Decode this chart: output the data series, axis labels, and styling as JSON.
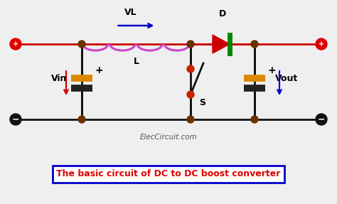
{
  "bg_color": "#efefef",
  "wire_color": "#111111",
  "top_wire_color": "#cc0000",
  "bottom_wire_color": "#111111",
  "inductor_color": "#cc44cc",
  "diode_color_body": "#cc0000",
  "diode_color_bar": "#008800",
  "capacitor_color": "#dd8800",
  "junction_color": "#6b3300",
  "terminal_pos_color": "#dd0000",
  "terminal_neg_color": "#111111",
  "title_text": "The basic circuit of DC to DC boost converter",
  "title_color": "#dd0000",
  "title_box_color": "#0000cc",
  "watermark": "ElecCircuit.com",
  "label_VL": "VL",
  "label_L": "L",
  "label_D": "D",
  "label_S": "S",
  "label_Vin": "Vin",
  "label_Vout": "Vout",
  "arrow_color_blue": "#0000cc",
  "arrow_color_red": "#cc0000"
}
